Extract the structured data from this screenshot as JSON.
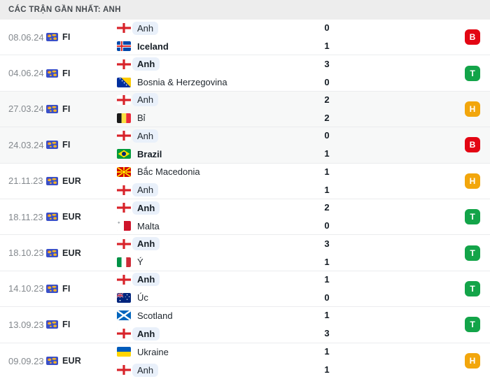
{
  "header": {
    "title": "CÁC TRẬN GẦN NHẤT: ANH"
  },
  "result_colors": {
    "B": "#e30613",
    "T": "#13a449",
    "H": "#f2a60c"
  },
  "competition_icon": "world-map-icon",
  "matches": [
    {
      "date": "08.06.24",
      "competition": "FI",
      "shaded": false,
      "home": {
        "name": "Anh",
        "flag": "england",
        "score": "0",
        "bold": false,
        "highlighted": true
      },
      "away": {
        "name": "Iceland",
        "flag": "iceland",
        "score": "1",
        "bold": true,
        "highlighted": false
      },
      "result": "B"
    },
    {
      "date": "04.06.24",
      "competition": "FI",
      "shaded": false,
      "home": {
        "name": "Anh",
        "flag": "england",
        "score": "3",
        "bold": true,
        "highlighted": true
      },
      "away": {
        "name": "Bosnia & Herzegovina",
        "flag": "bosnia",
        "score": "0",
        "bold": false,
        "highlighted": false
      },
      "result": "T"
    },
    {
      "date": "27.03.24",
      "competition": "FI",
      "shaded": true,
      "home": {
        "name": "Anh",
        "flag": "england",
        "score": "2",
        "bold": false,
        "highlighted": true
      },
      "away": {
        "name": "Bỉ",
        "flag": "belgium",
        "score": "2",
        "bold": false,
        "highlighted": false
      },
      "result": "H"
    },
    {
      "date": "24.03.24",
      "competition": "FI",
      "shaded": true,
      "home": {
        "name": "Anh",
        "flag": "england",
        "score": "0",
        "bold": false,
        "highlighted": true
      },
      "away": {
        "name": "Brazil",
        "flag": "brazil",
        "score": "1",
        "bold": true,
        "highlighted": false
      },
      "result": "B"
    },
    {
      "date": "21.11.23",
      "competition": "EUR",
      "shaded": false,
      "home": {
        "name": "Bắc Macedonia",
        "flag": "north-macedonia",
        "score": "1",
        "bold": false,
        "highlighted": false
      },
      "away": {
        "name": "Anh",
        "flag": "england",
        "score": "1",
        "bold": false,
        "highlighted": true
      },
      "result": "H"
    },
    {
      "date": "18.11.23",
      "competition": "EUR",
      "shaded": false,
      "home": {
        "name": "Anh",
        "flag": "england",
        "score": "2",
        "bold": true,
        "highlighted": true
      },
      "away": {
        "name": "Malta",
        "flag": "malta",
        "score": "0",
        "bold": false,
        "highlighted": false
      },
      "result": "T"
    },
    {
      "date": "18.10.23",
      "competition": "EUR",
      "shaded": false,
      "home": {
        "name": "Anh",
        "flag": "england",
        "score": "3",
        "bold": true,
        "highlighted": true
      },
      "away": {
        "name": "Ý",
        "flag": "italy",
        "score": "1",
        "bold": false,
        "highlighted": false
      },
      "result": "T"
    },
    {
      "date": "14.10.23",
      "competition": "FI",
      "shaded": false,
      "home": {
        "name": "Anh",
        "flag": "england",
        "score": "1",
        "bold": true,
        "highlighted": true
      },
      "away": {
        "name": "Úc",
        "flag": "australia",
        "score": "0",
        "bold": false,
        "highlighted": false
      },
      "result": "T"
    },
    {
      "date": "13.09.23",
      "competition": "FI",
      "shaded": false,
      "home": {
        "name": "Scotland",
        "flag": "scotland",
        "score": "1",
        "bold": false,
        "highlighted": false
      },
      "away": {
        "name": "Anh",
        "flag": "england",
        "score": "3",
        "bold": true,
        "highlighted": true
      },
      "result": "T"
    },
    {
      "date": "09.09.23",
      "competition": "EUR",
      "shaded": false,
      "home": {
        "name": "Ukraine",
        "flag": "ukraine",
        "score": "1",
        "bold": false,
        "highlighted": false
      },
      "away": {
        "name": "Anh",
        "flag": "england",
        "score": "1",
        "bold": false,
        "highlighted": true
      },
      "result": "H"
    }
  ]
}
